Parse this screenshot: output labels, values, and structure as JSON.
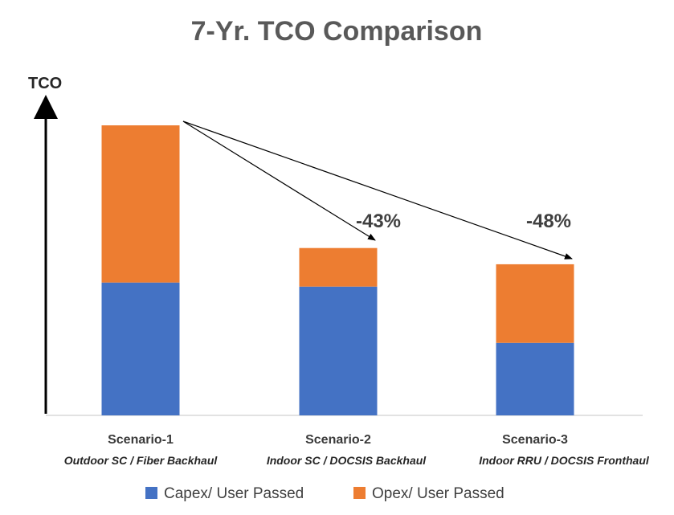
{
  "chart_data": {
    "type": "bar",
    "stacked": true,
    "title": "7-Yr. TCO Comparison",
    "ylabel": "TCO",
    "xlabel": "",
    "ylim": [
      0,
      100
    ],
    "categories": [
      "Scenario-1",
      "Scenario-2",
      "Scenario-3"
    ],
    "subcategories": [
      "Outdoor SC / Fiber Backhaul",
      "Indoor SC / DOCSIS Backhaul",
      "Indoor RRU / DOCSIS Fronthaul"
    ],
    "series": [
      {
        "name": "Capex/ User Passed",
        "values": [
          45.8,
          44.4,
          25.0
        ],
        "color": "#4472C4"
      },
      {
        "name": "Opex/ User Passed",
        "values": [
          54.2,
          13.3,
          27.1
        ],
        "color": "#ED7D31"
      }
    ],
    "annotations": [
      {
        "text": "-43%",
        "from": "Scenario-1",
        "to": "Scenario-2"
      },
      {
        "text": "-48%",
        "from": "Scenario-1",
        "to": "Scenario-3"
      }
    ],
    "legend_position": "bottom",
    "grid": false
  }
}
